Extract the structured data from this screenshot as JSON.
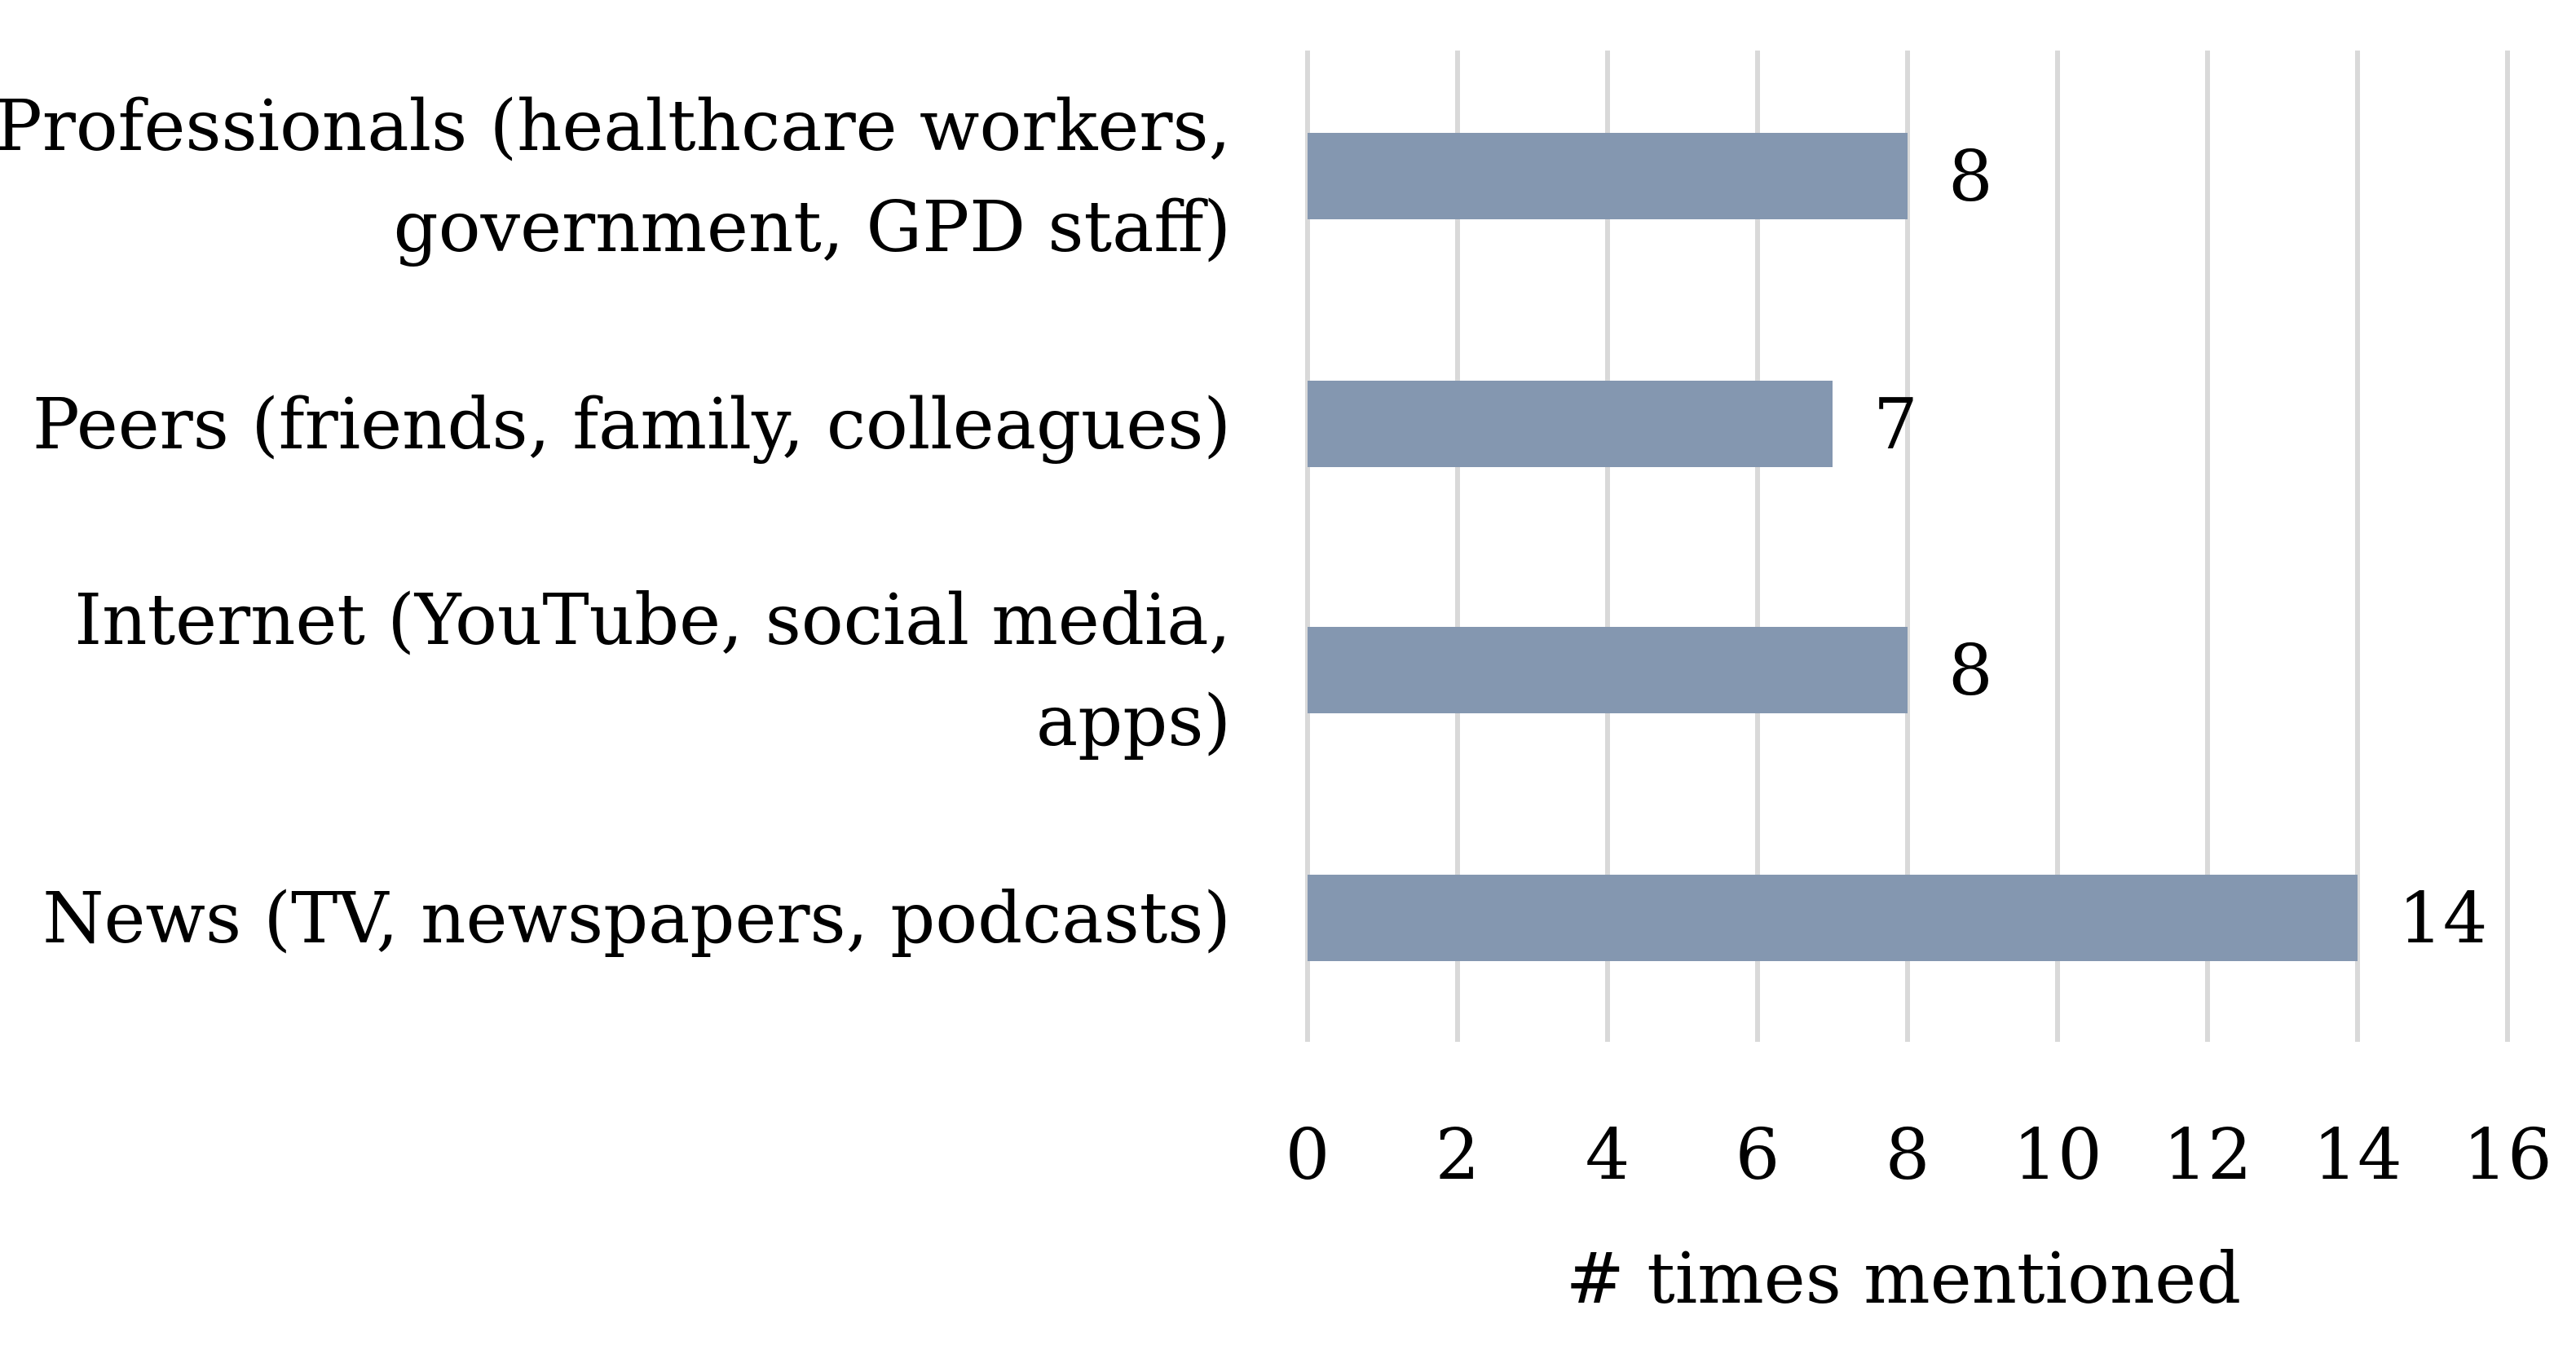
{
  "chart_data": {
    "type": "bar",
    "orientation": "horizontal",
    "categories": [
      [
        "Professionals (healthcare workers,",
        "government, GPD staff)"
      ],
      [
        "Peers (friends, family, colleagues)"
      ],
      [
        "Internet (YouTube, social media,",
        "apps)"
      ],
      [
        "News (TV, newspapers, podcasts)"
      ]
    ],
    "values": [
      8,
      7,
      8,
      14
    ],
    "xlabel": "# times mentioned",
    "ylabel": "",
    "title": "",
    "xlim": [
      0,
      16
    ],
    "xticks": [
      "0",
      "2",
      "4",
      "6",
      "8",
      "10",
      "12",
      "14",
      "16"
    ],
    "grid": "vertical",
    "legend": "none",
    "data_labels": true,
    "bar_color": "#8497b0",
    "grid_color": "#d9d9d9"
  }
}
